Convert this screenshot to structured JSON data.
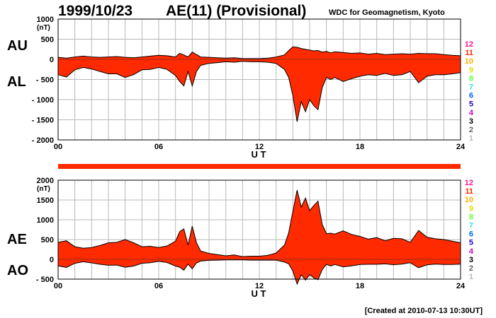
{
  "header": {
    "date": "1999/10/23",
    "title": "AE(11) (Provisional)",
    "source": "WDC for Geomagnetism, Kyoto"
  },
  "footer": {
    "created": "[Created at 2010-07-13 10:30UT]"
  },
  "unit_label": "(nT)",
  "x_axis_label": "U T",
  "legend_levels": [
    {
      "label": "12",
      "color": "#ff1493"
    },
    {
      "label": "11",
      "color": "#ff2a00"
    },
    {
      "label": "10",
      "color": "#ffb000"
    },
    {
      "label": "9",
      "color": "#e0e000"
    },
    {
      "label": "8",
      "color": "#66ff33"
    },
    {
      "label": "7",
      "color": "#33dddd"
    },
    {
      "label": "6",
      "color": "#0066ff"
    },
    {
      "label": "5",
      "color": "#2200cc"
    },
    {
      "label": "4",
      "color": "#cc00cc"
    },
    {
      "label": "3",
      "color": "#000000"
    },
    {
      "label": "2",
      "color": "#666666"
    },
    {
      "label": "1",
      "color": "#bbbbbb"
    }
  ],
  "colors": {
    "fill": "#ff2a00",
    "outline": "#000000",
    "highlight": "#ffcc66",
    "grid": "#b8b8b8"
  },
  "chart_data": [
    {
      "type": "area",
      "panel": "AU/AL",
      "upper_label": "AU",
      "lower_label": "AL",
      "xlabel": "U T",
      "xlim": [
        0,
        24
      ],
      "ylim": [
        -2000,
        1000
      ],
      "yticks": [
        1000,
        500,
        0,
        -500,
        -1000,
        -1500,
        -2000
      ],
      "ytick_labels": [
        "1000",
        "500",
        "0",
        "- 500",
        "- 1000",
        "- 1500",
        "- 2000"
      ],
      "xticks": [
        0,
        6,
        12,
        18,
        24
      ],
      "xtick_labels": [
        "00",
        "06",
        "12",
        "18",
        "24"
      ],
      "x": [
        0,
        0.5,
        1,
        1.5,
        2,
        2.5,
        3,
        3.5,
        4,
        4.5,
        5,
        5.5,
        6,
        6.5,
        7,
        7.25,
        7.5,
        7.75,
        8,
        8.25,
        8.5,
        9,
        9.5,
        10,
        10.5,
        11,
        11.5,
        12,
        12.5,
        13,
        13.5,
        13.75,
        14,
        14.25,
        14.5,
        14.75,
        15,
        15.25,
        15.5,
        15.75,
        16,
        16.25,
        16.5,
        17,
        17.5,
        18,
        18.5,
        19,
        19.5,
        20,
        20.5,
        21,
        21.5,
        22,
        22.5,
        23,
        23.5,
        24
      ],
      "series": [
        {
          "name": "AU",
          "values": [
            50,
            30,
            60,
            80,
            60,
            50,
            60,
            70,
            50,
            40,
            60,
            80,
            100,
            90,
            60,
            150,
            110,
            60,
            180,
            120,
            60,
            50,
            40,
            30,
            40,
            20,
            20,
            20,
            30,
            60,
            110,
            220,
            310,
            300,
            270,
            250,
            230,
            210,
            220,
            180,
            200,
            160,
            190,
            170,
            150,
            160,
            130,
            150,
            120,
            130,
            140,
            130,
            150,
            140,
            140,
            120,
            100,
            90
          ]
        },
        {
          "name": "AL",
          "values": [
            -380,
            -440,
            -260,
            -200,
            -240,
            -300,
            -360,
            -360,
            -450,
            -380,
            -260,
            -250,
            -200,
            -250,
            -400,
            -550,
            -660,
            -300,
            -660,
            -300,
            -150,
            -100,
            -80,
            -60,
            -70,
            -50,
            -60,
            -60,
            -70,
            -100,
            -250,
            -450,
            -900,
            -1550,
            -1050,
            -1300,
            -1000,
            -1150,
            -1250,
            -700,
            -450,
            -500,
            -450,
            -550,
            -480,
            -420,
            -380,
            -400,
            -350,
            -400,
            -380,
            -300,
            -580,
            -420,
            -380,
            -380,
            -360,
            -330
          ]
        }
      ]
    },
    {
      "type": "area",
      "panel": "AE/AO",
      "upper_label": "AE",
      "lower_label": "AO",
      "xlabel": "U T",
      "xlim": [
        0,
        24
      ],
      "ylim": [
        -500,
        2000
      ],
      "yticks": [
        2000,
        1500,
        1000,
        500,
        0,
        -500
      ],
      "ytick_labels": [
        "2000",
        "1500",
        "1000",
        "500",
        "0",
        "- 500"
      ],
      "xticks": [
        0,
        6,
        12,
        18,
        24
      ],
      "xtick_labels": [
        "00",
        "06",
        "12",
        "18",
        "24"
      ],
      "x": [
        0,
        0.5,
        1,
        1.5,
        2,
        2.5,
        3,
        3.5,
        4,
        4.5,
        5,
        5.5,
        6,
        6.5,
        7,
        7.25,
        7.5,
        7.75,
        8,
        8.25,
        8.5,
        9,
        9.5,
        10,
        10.5,
        11,
        11.5,
        12,
        12.5,
        13,
        13.5,
        13.75,
        14,
        14.25,
        14.5,
        14.75,
        15,
        15.25,
        15.5,
        15.75,
        16,
        16.25,
        16.5,
        17,
        17.5,
        18,
        18.5,
        19,
        19.5,
        20,
        20.5,
        21,
        21.5,
        22,
        22.5,
        23,
        23.5,
        24
      ],
      "series": [
        {
          "name": "AE",
          "values": [
            430,
            470,
            320,
            280,
            300,
            350,
            420,
            430,
            500,
            420,
            320,
            330,
            300,
            340,
            460,
            700,
            770,
            360,
            840,
            420,
            210,
            150,
            120,
            90,
            110,
            70,
            80,
            80,
            100,
            160,
            360,
            670,
            1210,
            1750,
            1320,
            1550,
            1230,
            1360,
            1470,
            880,
            650,
            660,
            640,
            720,
            630,
            580,
            510,
            550,
            470,
            530,
            520,
            430,
            730,
            560,
            520,
            500,
            460,
            420
          ]
        },
        {
          "name": "AO",
          "values": [
            -165,
            -205,
            -100,
            -60,
            -90,
            -125,
            -150,
            -145,
            -200,
            -170,
            -100,
            -85,
            -50,
            -80,
            -170,
            -200,
            -275,
            -120,
            -240,
            -90,
            -45,
            -25,
            -20,
            -15,
            -15,
            -15,
            -20,
            -20,
            -20,
            -20,
            -70,
            -115,
            -295,
            -625,
            -390,
            -525,
            -385,
            -470,
            -515,
            -260,
            -125,
            -170,
            -130,
            -190,
            -165,
            -130,
            -125,
            -125,
            -115,
            -135,
            -120,
            -85,
            -215,
            -140,
            -120,
            -130,
            -130,
            -120
          ]
        }
      ]
    }
  ]
}
